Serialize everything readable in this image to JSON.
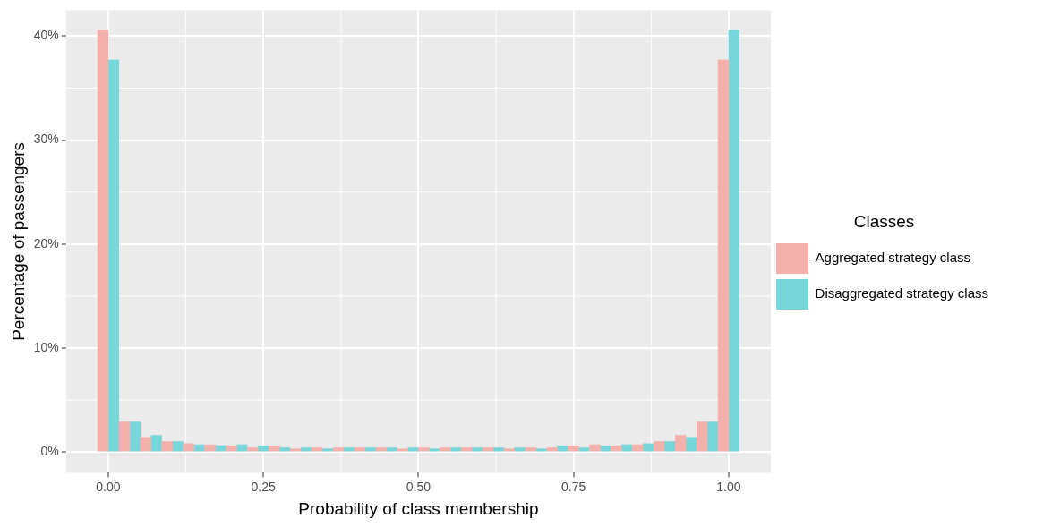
{
  "chart_data": {
    "type": "histogram",
    "xlabel": "Probability of class membership",
    "ylabel": "Percentage of passengers",
    "legend_title": "Classes",
    "bins": [
      -0.017,
      0.017,
      0.052,
      0.086,
      0.121,
      0.155,
      0.19,
      0.224,
      0.259,
      0.293,
      0.328,
      0.362,
      0.397,
      0.431,
      0.466,
      0.5,
      0.534,
      0.569,
      0.603,
      0.638,
      0.672,
      0.707,
      0.741,
      0.776,
      0.81,
      0.845,
      0.879,
      0.914,
      0.948,
      0.983,
      1.017
    ],
    "series": [
      {
        "name": "Aggregated strategy class",
        "color": "#f4b0aa",
        "values": [
          40.6,
          2.9,
          1.4,
          1.0,
          0.8,
          0.7,
          0.6,
          0.4,
          0.6,
          0.3,
          0.4,
          0.4,
          0.4,
          0.4,
          0.3,
          0.4,
          0.4,
          0.4,
          0.4,
          0.3,
          0.4,
          0.4,
          0.6,
          0.7,
          0.6,
          0.7,
          1.0,
          1.6,
          2.9,
          37.7
        ]
      },
      {
        "name": "Disaggregated strategy class",
        "color": "#76d6d9",
        "values": [
          37.7,
          2.9,
          1.6,
          1.0,
          0.7,
          0.6,
          0.7,
          0.6,
          0.4,
          0.4,
          0.3,
          0.4,
          0.4,
          0.4,
          0.4,
          0.3,
          0.4,
          0.4,
          0.4,
          0.4,
          0.3,
          0.6,
          0.4,
          0.6,
          0.7,
          0.8,
          1.0,
          1.4,
          2.9,
          40.6
        ]
      }
    ],
    "xlim": [
      -0.068,
      1.068
    ],
    "xticks": [
      {
        "value": 0,
        "label": "0.00"
      },
      {
        "value": 0.25,
        "label": "0.25"
      },
      {
        "value": 0.5,
        "label": "0.50"
      },
      {
        "value": 0.75,
        "label": "0.75"
      },
      {
        "value": 1,
        "label": "1.00"
      }
    ],
    "ylim": [
      -2.0,
      42.5
    ],
    "yticks": [
      {
        "value": 0,
        "label": "0%"
      },
      {
        "value": 10,
        "label": "10%"
      },
      {
        "value": 20,
        "label": "20%"
      },
      {
        "value": 30,
        "label": "30%"
      },
      {
        "value": 40,
        "label": "40%"
      }
    ],
    "grid": true,
    "legend": "right"
  }
}
